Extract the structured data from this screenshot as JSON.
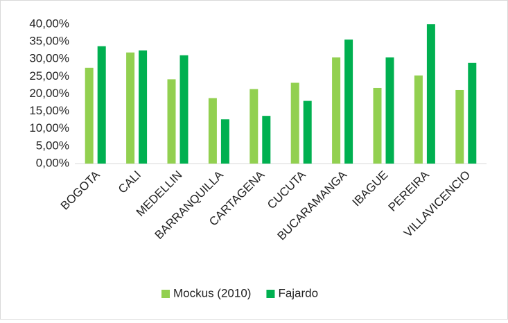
{
  "chart_data": {
    "type": "bar",
    "categories": [
      "BOGOTA",
      "CALI",
      "MEDELLIN",
      "BARRANQUILLA",
      "CARTAGENA",
      "CUCUTA",
      "BUCARAMANGA",
      "IBAGUE",
      "PEREIRA",
      "VILLAVICENCIO"
    ],
    "series": [
      {
        "name": "Mockus (2010)",
        "color": "#92d050",
        "values": [
          27.5,
          31.9,
          24.2,
          18.8,
          21.4,
          23.2,
          30.5,
          21.7,
          25.3,
          21.1
        ]
      },
      {
        "name": "Fajardo",
        "color": "#00b050",
        "values": [
          33.7,
          32.5,
          31.1,
          12.7,
          13.7,
          18.0,
          35.6,
          30.5,
          40.0,
          28.9
        ]
      }
    ],
    "ylim": [
      0,
      40
    ],
    "yticks": [
      {
        "value": 0,
        "label": "0,00%"
      },
      {
        "value": 5,
        "label": "5,00%"
      },
      {
        "value": 10,
        "label": "10,00%"
      },
      {
        "value": 15,
        "label": "15,00%"
      },
      {
        "value": 20,
        "label": "20,00%"
      },
      {
        "value": 25,
        "label": "25,00%"
      },
      {
        "value": 30,
        "label": "30,00%"
      },
      {
        "value": 35,
        "label": "35,00%"
      },
      {
        "value": 40,
        "label": "40,00%"
      }
    ],
    "grid": false,
    "legend": "bottom"
  }
}
